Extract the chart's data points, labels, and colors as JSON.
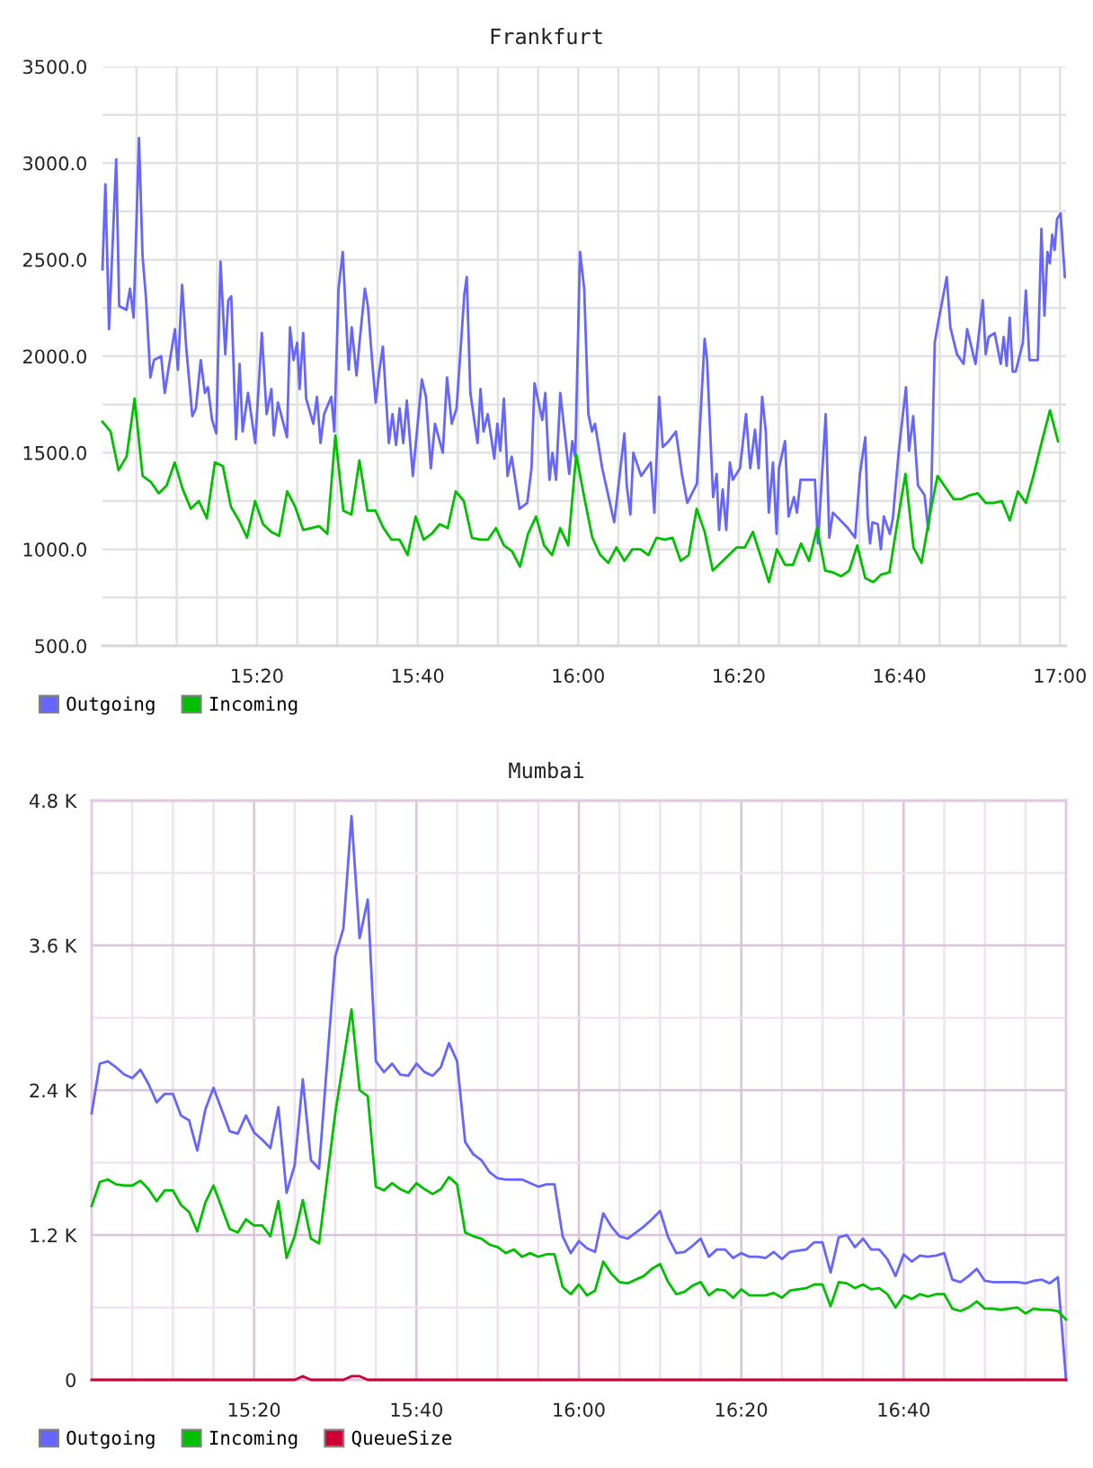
{
  "chart_data": [
    {
      "type": "line",
      "title": "Frankfurt",
      "xlim": [
        15.0125,
        17.0125
      ],
      "xticks": [
        {
          "value": 15.0833,
          "label": null
        },
        {
          "value": 15.1667,
          "label": null
        },
        {
          "value": 15.25,
          "label": null
        },
        {
          "value": 15.3333,
          "label": "15:20"
        },
        {
          "value": 15.4167,
          "label": null
        },
        {
          "value": 15.5,
          "label": null
        },
        {
          "value": 15.5833,
          "label": null
        },
        {
          "value": 15.6667,
          "label": "15:40"
        },
        {
          "value": 15.75,
          "label": null
        },
        {
          "value": 15.8333,
          "label": null
        },
        {
          "value": 15.9167,
          "label": null
        },
        {
          "value": 16,
          "label": "16:00"
        },
        {
          "value": 16.0833,
          "label": null
        },
        {
          "value": 16.1667,
          "label": null
        },
        {
          "value": 16.25,
          "label": null
        },
        {
          "value": 16.3333,
          "label": "16:20"
        },
        {
          "value": 16.4167,
          "label": null
        },
        {
          "value": 16.5,
          "label": null
        },
        {
          "value": 16.5833,
          "label": null
        },
        {
          "value": 16.6667,
          "label": "16:40"
        },
        {
          "value": 16.75,
          "label": null
        },
        {
          "value": 16.8333,
          "label": null
        },
        {
          "value": 16.9167,
          "label": null
        },
        {
          "value": 17,
          "label": "17:00"
        }
      ],
      "ylim": [
        500,
        3500
      ],
      "yticks": [
        {
          "value": 500,
          "label": "500.0"
        },
        {
          "value": 750,
          "label": null
        },
        {
          "value": 1000,
          "label": "1000.0"
        },
        {
          "value": 1250,
          "label": null
        },
        {
          "value": 1500,
          "label": "1500.0"
        },
        {
          "value": 1750,
          "label": null
        },
        {
          "value": 2000,
          "label": "2000.0"
        },
        {
          "value": 2250,
          "label": null
        },
        {
          "value": 2500,
          "label": "2500.0"
        },
        {
          "value": 2750,
          "label": null
        },
        {
          "value": 3000,
          "label": "3000.0"
        },
        {
          "value": 3250,
          "label": null
        },
        {
          "value": 3500,
          "label": "3500.0"
        }
      ],
      "grid": true,
      "legend": "bottom left",
      "series": [
        {
          "name": "Outgoing",
          "color": "#6666ff",
          "x": [
            15.0125,
            15.0186,
            15.0261,
            15.041,
            15.0472,
            15.0622,
            15.0696,
            15.0771,
            15.0883,
            15.0957,
            15.1032,
            15.1119,
            15.1194,
            15.1343,
            15.1418,
            15.1492,
            15.1629,
            15.1691,
            15.1778,
            15.1865,
            15.199,
            15.2064,
            15.2164,
            15.2251,
            15.2313,
            15.24,
            15.2487,
            15.2574,
            15.2674,
            15.2736,
            15.2798,
            15.2898,
            15.2972,
            15.3034,
            15.3146,
            15.3296,
            15.3433,
            15.3532,
            15.3632,
            15.3681,
            15.3768,
            15.3955,
            15.4017,
            15.4092,
            15.4166,
            15.4216,
            15.4291,
            15.4353,
            15.4502,
            15.4577,
            15.4651,
            15.4726,
            15.4875,
            15.4937,
            15.5025,
            15.5112,
            15.5236,
            15.5298,
            15.5398,
            15.546,
            15.5572,
            15.5634,
            15.5721,
            15.5796,
            15.587,
            15.5945,
            15.6069,
            15.6144,
            15.6219,
            15.6293,
            15.6368,
            15.6442,
            15.6567,
            15.6753,
            15.684,
            15.694,
            15.7027,
            15.7189,
            15.7276,
            15.7375,
            15.7475,
            15.7636,
            15.7686,
            15.7761,
            15.791,
            15.7972,
            15.8034,
            15.8122,
            15.8258,
            15.8321,
            15.8383,
            15.8457,
            15.8532,
            15.8619,
            15.8781,
            15.8942,
            15.903,
            15.9092,
            15.9254,
            15.9316,
            15.9403,
            15.9465,
            15.954,
            15.9627,
            15.9813,
            15.9876,
            15.9938,
            16.0037,
            16.0124,
            16.0211,
            16.0286,
            16.0348,
            16.0498,
            16.0746,
            16.0808,
            16.0958,
            16.1007,
            16.1082,
            16.1144,
            16.1306,
            16.1505,
            16.158,
            16.1679,
            16.1754,
            16.1878,
            16.2027,
            16.2152,
            16.2264,
            16.2463,
            16.2624,
            16.2674,
            16.2799,
            16.2873,
            16.2923,
            16.2998,
            16.3072,
            16.3147,
            16.3209,
            16.3358,
            16.3483,
            16.357,
            16.3669,
            16.3744,
            16.3818,
            16.3893,
            16.3955,
            16.4042,
            16.4117,
            16.4167,
            16.4291,
            16.4366,
            16.4478,
            16.454,
            16.4614,
            16.4913,
            16.4975,
            16.5137,
            16.5211,
            16.5286,
            16.5597,
            16.5746,
            16.5846,
            16.5958,
            16.6007,
            16.6057,
            16.6107,
            16.6219,
            16.6281,
            16.6343,
            16.6468,
            16.653,
            16.6654,
            16.6803,
            16.6866,
            16.6953,
            16.7052,
            16.7189,
            16.7264,
            16.7326,
            16.74,
            16.7475,
            16.7649,
            16.7724,
            16.7861,
            16.7998,
            16.8072,
            16.8246,
            16.8396,
            16.8458,
            16.852,
            16.8644,
            16.8769,
            16.8831,
            16.8893,
            16.8955,
            16.9017,
            16.908,
            16.9229,
            16.9291,
            16.9366,
            16.954,
            16.9614,
            16.9677,
            16.9739,
            16.9789,
            16.9838,
            16.9888,
            16.9938,
            17.0012,
            17.01
          ],
          "values": [
            2450,
            2890,
            2140,
            3020,
            2260,
            2240,
            2350,
            2200,
            3130,
            2520,
            2290,
            1890,
            1980,
            2000,
            1810,
            1930,
            2140,
            1930,
            2370,
            2040,
            1690,
            1730,
            1980,
            1810,
            1840,
            1670,
            1600,
            2490,
            2010,
            2290,
            2310,
            1570,
            1960,
            1610,
            1810,
            1550,
            2120,
            1700,
            1830,
            1590,
            1760,
            1580,
            2150,
            1980,
            2070,
            1830,
            2120,
            1780,
            1650,
            1790,
            1550,
            1700,
            1790,
            1610,
            2350,
            2540,
            1930,
            2150,
            1900,
            2070,
            2350,
            2260,
            1980,
            1760,
            1920,
            2050,
            1550,
            1700,
            1540,
            1730,
            1550,
            1770,
            1380,
            1880,
            1790,
            1420,
            1650,
            1500,
            1890,
            1650,
            1730,
            2320,
            2410,
            1810,
            1550,
            1830,
            1610,
            1700,
            1470,
            1650,
            1510,
            1780,
            1380,
            1480,
            1210,
            1240,
            1420,
            1860,
            1670,
            1810,
            1360,
            1500,
            1360,
            1810,
            1390,
            1560,
            1480,
            2540,
            2350,
            1700,
            1610,
            1650,
            1420,
            1140,
            1270,
            1600,
            1330,
            1180,
            1500,
            1380,
            1450,
            1190,
            1790,
            1530,
            1560,
            1610,
            1390,
            1240,
            1340,
            2090,
            1980,
            1270,
            1390,
            1100,
            1310,
            1100,
            1450,
            1360,
            1420,
            1700,
            1420,
            1620,
            1420,
            1790,
            1610,
            1190,
            1450,
            1080,
            1420,
            1560,
            1170,
            1270,
            1190,
            1360,
            1360,
            1030,
            1700,
            1060,
            1190,
            1110,
            1060,
            1390,
            1580,
            1170,
            1030,
            1140,
            1130,
            1000,
            1170,
            1080,
            1160,
            1510,
            1840,
            1510,
            1690,
            1330,
            1280,
            1100,
            1270,
            2070,
            2180,
            2410,
            2150,
            2010,
            1960,
            2140,
            1960,
            2290,
            2010,
            2100,
            2120,
            1960,
            2100,
            1950,
            2200,
            1920,
            1920,
            2070,
            2340,
            1980,
            1980,
            2660,
            2210,
            2540,
            2480,
            2630,
            2550,
            2710,
            2740,
            2410
          ]
        },
        {
          "name": "Incoming",
          "color": "#00c000",
          "x": [
            15.0125,
            15.0292,
            15.0458,
            15.0625,
            15.0792,
            15.0958,
            15.1125,
            15.1292,
            15.1458,
            15.1625,
            15.1792,
            15.1958,
            15.2125,
            15.2292,
            15.2458,
            15.2625,
            15.2792,
            15.2958,
            15.3125,
            15.3292,
            15.3458,
            15.3625,
            15.3792,
            15.3958,
            15.4125,
            15.4292,
            15.4458,
            15.4625,
            15.4792,
            15.4958,
            15.5125,
            15.5292,
            15.5458,
            15.5625,
            15.5792,
            15.5958,
            15.6125,
            15.6292,
            15.6458,
            15.6625,
            15.6792,
            15.6958,
            15.7125,
            15.7292,
            15.7458,
            15.7625,
            15.7792,
            15.7958,
            15.8125,
            15.8292,
            15.8458,
            15.8625,
            15.8792,
            15.8958,
            15.9125,
            15.9292,
            15.9458,
            15.9625,
            15.9792,
            15.9958,
            16.0125,
            16.0292,
            16.0458,
            16.0625,
            16.0792,
            16.0958,
            16.1125,
            16.1292,
            16.1458,
            16.1625,
            16.1792,
            16.1958,
            16.2125,
            16.2292,
            16.2458,
            16.2625,
            16.2792,
            16.2958,
            16.3125,
            16.3292,
            16.3458,
            16.3625,
            16.3792,
            16.3958,
            16.4125,
            16.4292,
            16.4458,
            16.4625,
            16.4792,
            16.4958,
            16.5125,
            16.5292,
            16.5458,
            16.5625,
            16.5792,
            16.5958,
            16.6125,
            16.6292,
            16.6458,
            16.6625,
            16.6792,
            16.6958,
            16.7125,
            16.7292,
            16.7458,
            16.7625,
            16.7792,
            16.7958,
            16.8125,
            16.8292,
            16.8458,
            16.8625,
            16.8792,
            16.8958,
            16.9125,
            16.9292,
            16.9458,
            16.9625,
            16.9792,
            16.9958
          ],
          "values": [
            1660,
            1610,
            1410,
            1480,
            1780,
            1380,
            1350,
            1290,
            1330,
            1450,
            1310,
            1210,
            1250,
            1160,
            1450,
            1430,
            1220,
            1150,
            1060,
            1250,
            1130,
            1090,
            1070,
            1300,
            1220,
            1100,
            1110,
            1120,
            1080,
            1590,
            1200,
            1180,
            1460,
            1200,
            1200,
            1110,
            1050,
            1050,
            970,
            1170,
            1050,
            1080,
            1130,
            1110,
            1300,
            1250,
            1060,
            1050,
            1050,
            1110,
            1020,
            990,
            910,
            1080,
            1170,
            1020,
            970,
            1110,
            1020,
            1490,
            1270,
            1060,
            970,
            930,
            1010,
            940,
            1000,
            1000,
            970,
            1060,
            1050,
            1060,
            940,
            970,
            1210,
            1090,
            890,
            930,
            970,
            1010,
            1010,
            1090,
            960,
            830,
            1000,
            920,
            920,
            1030,
            940,
            1110,
            890,
            880,
            860,
            890,
            1020,
            850,
            830,
            870,
            880,
            1140,
            1390,
            1010,
            930,
            1170,
            1380,
            1320,
            1260,
            1260,
            1280,
            1290,
            1240,
            1240,
            1250,
            1150,
            1300,
            1240,
            1390,
            1560,
            1720,
            1560
          ]
        }
      ]
    },
    {
      "type": "line",
      "title": "Mumbai",
      "xlim": [
        15,
        17
      ],
      "xticks": [
        {
          "value": 15.0833,
          "label": null
        },
        {
          "value": 15.1667,
          "label": null
        },
        {
          "value": 15.25,
          "label": null
        },
        {
          "value": 15.3333,
          "label": "15:20"
        },
        {
          "value": 15.4167,
          "label": null
        },
        {
          "value": 15.5,
          "label": null
        },
        {
          "value": 15.5833,
          "label": null
        },
        {
          "value": 15.6667,
          "label": "15:40"
        },
        {
          "value": 15.75,
          "label": null
        },
        {
          "value": 15.8333,
          "label": null
        },
        {
          "value": 15.9167,
          "label": null
        },
        {
          "value": 16,
          "label": "16:00"
        },
        {
          "value": 16.0833,
          "label": null
        },
        {
          "value": 16.1667,
          "label": null
        },
        {
          "value": 16.25,
          "label": null
        },
        {
          "value": 16.3333,
          "label": "16:20"
        },
        {
          "value": 16.4167,
          "label": null
        },
        {
          "value": 16.5,
          "label": null
        },
        {
          "value": 16.5833,
          "label": null
        },
        {
          "value": 16.6667,
          "label": "16:40"
        },
        {
          "value": 16.75,
          "label": null
        },
        {
          "value": 16.8333,
          "label": null
        },
        {
          "value": 16.9167,
          "label": null
        }
      ],
      "ylim": [
        0,
        4800
      ],
      "yticks": [
        0,
        {
          "value": 600,
          "label": null
        },
        {
          "value": 1200,
          "label": "1.2 K"
        },
        {
          "value": 1800,
          "label": null
        },
        {
          "value": 2400,
          "label": "2.4 K"
        },
        {
          "value": 3000,
          "label": null
        },
        {
          "value": 3600,
          "label": "3.6 K"
        },
        {
          "value": 4200,
          "label": null
        },
        {
          "value": 4800,
          "label": "4.8 K"
        }
      ],
      "grid": true,
      "legend": "bottom left",
      "x": [
        15,
        15.0167,
        15.0333,
        15.05,
        15.0667,
        15.0833,
        15.1,
        15.1167,
        15.1333,
        15.15,
        15.1667,
        15.1833,
        15.2,
        15.2167,
        15.2333,
        15.25,
        15.2667,
        15.2833,
        15.3,
        15.3167,
        15.3333,
        15.35,
        15.3667,
        15.3833,
        15.4,
        15.4167,
        15.4333,
        15.45,
        15.4667,
        15.4833,
        15.5,
        15.5167,
        15.5333,
        15.55,
        15.5667,
        15.5833,
        15.6,
        15.6167,
        15.6333,
        15.65,
        15.6667,
        15.6833,
        15.7,
        15.7167,
        15.7333,
        15.75,
        15.7667,
        15.7833,
        15.8,
        15.8167,
        15.8333,
        15.85,
        15.8667,
        15.8833,
        15.9,
        15.9167,
        15.9333,
        15.95,
        15.9667,
        15.9833,
        16,
        16.0167,
        16.0333,
        16.05,
        16.0667,
        16.0833,
        16.1,
        16.1167,
        16.1333,
        16.15,
        16.1667,
        16.1833,
        16.2,
        16.2167,
        16.2333,
        16.25,
        16.2667,
        16.2833,
        16.3,
        16.3167,
        16.3333,
        16.35,
        16.3667,
        16.3833,
        16.4,
        16.4167,
        16.4333,
        16.45,
        16.4667,
        16.4833,
        16.5,
        16.5167,
        16.5333,
        16.55,
        16.5667,
        16.5833,
        16.6,
        16.6167,
        16.6333,
        16.65,
        16.6667,
        16.6833,
        16.7,
        16.7167,
        16.7333,
        16.75,
        16.7667,
        16.7833,
        16.8,
        16.8167,
        16.8333,
        16.85,
        16.8667,
        16.8833,
        16.9,
        16.9167,
        16.9333,
        16.95,
        16.9667,
        16.9833,
        17
      ],
      "series": [
        {
          "name": "Outgoing",
          "color": "#6666ff",
          "values": [
            2210,
            2620,
            2640,
            2590,
            2530,
            2500,
            2570,
            2450,
            2300,
            2370,
            2370,
            2190,
            2150,
            1900,
            2240,
            2420,
            2240,
            2060,
            2040,
            2190,
            2050,
            1990,
            1920,
            2260,
            1550,
            1780,
            2490,
            1820,
            1750,
            2630,
            3510,
            3740,
            4670,
            3660,
            3980,
            2640,
            2550,
            2620,
            2530,
            2520,
            2620,
            2550,
            2520,
            2590,
            2790,
            2640,
            1970,
            1870,
            1820,
            1720,
            1670,
            1660,
            1660,
            1660,
            1630,
            1600,
            1620,
            1620,
            1190,
            1050,
            1150,
            1090,
            1060,
            1380,
            1270,
            1190,
            1170,
            1220,
            1270,
            1330,
            1400,
            1180,
            1050,
            1060,
            1110,
            1170,
            1020,
            1080,
            1080,
            1010,
            1050,
            1020,
            1020,
            1010,
            1060,
            1000,
            1060,
            1070,
            1080,
            1140,
            1140,
            890,
            1180,
            1200,
            1100,
            1170,
            1080,
            1080,
            1000,
            860,
            1040,
            980,
            1030,
            1020,
            1030,
            1050,
            830,
            810,
            860,
            920,
            820,
            810,
            810,
            810,
            810,
            800,
            820,
            830,
            800,
            850,
            0
          ]
        },
        {
          "name": "Incoming",
          "color": "#00c000",
          "values": [
            1440,
            1640,
            1660,
            1620,
            1610,
            1610,
            1650,
            1580,
            1480,
            1570,
            1570,
            1450,
            1390,
            1230,
            1470,
            1610,
            1430,
            1250,
            1220,
            1330,
            1280,
            1280,
            1190,
            1480,
            1010,
            1190,
            1490,
            1170,
            1130,
            1670,
            2210,
            2640,
            3070,
            2400,
            2350,
            1600,
            1570,
            1630,
            1580,
            1550,
            1630,
            1580,
            1540,
            1580,
            1680,
            1620,
            1220,
            1190,
            1170,
            1120,
            1100,
            1050,
            1080,
            1020,
            1050,
            1020,
            1040,
            1040,
            770,
            710,
            790,
            700,
            740,
            980,
            880,
            810,
            800,
            830,
            860,
            920,
            960,
            810,
            710,
            730,
            780,
            810,
            700,
            750,
            740,
            680,
            750,
            700,
            700,
            700,
            720,
            680,
            740,
            750,
            760,
            790,
            790,
            610,
            810,
            800,
            760,
            790,
            750,
            760,
            710,
            600,
            700,
            670,
            710,
            690,
            710,
            710,
            590,
            570,
            600,
            650,
            590,
            590,
            580,
            590,
            600,
            550,
            590,
            580,
            580,
            570,
            500
          ]
        },
        {
          "name": "QueueSize",
          "color": "#cc0033",
          "x": [
            15,
            15.4167,
            15.4333,
            15.45,
            15.5167,
            15.5333,
            15.55,
            15.5667,
            17
          ],
          "values": [
            0,
            0,
            30,
            0,
            0,
            30,
            30,
            0,
            0
          ]
        }
      ]
    }
  ]
}
